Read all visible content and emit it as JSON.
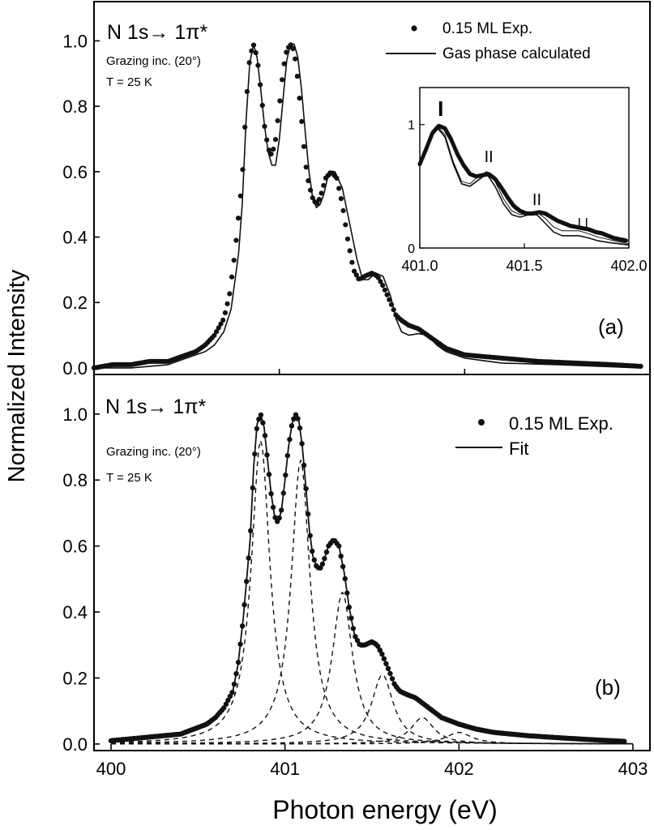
{
  "figure": {
    "shared_ylabel": "Normalized Intensity",
    "shared_xlabel": "Photon energy (eV)"
  },
  "chart_data": [
    {
      "panel": "a",
      "type": "line",
      "panel_label": "(a)",
      "title": "N 1s→ 1π*",
      "annotations": [
        "Grazing inc. (20°)",
        "T = 25 K"
      ],
      "xlim": [
        400,
        403
      ],
      "ylim": [
        -0.02,
        1.12
      ],
      "yticks": [
        0.0,
        0.2,
        0.4,
        0.6,
        0.8,
        1.0
      ],
      "ytick_labels": [
        "0.0",
        "0.2",
        "0.4",
        "0.6",
        "0.8",
        "1.0"
      ],
      "legend": {
        "position": "top-right",
        "entries": [
          "0.15 ML Exp.",
          "Gas phase calculated"
        ]
      },
      "series": [
        {
          "name": "0.15 ML Exp.",
          "style": "dots",
          "x": [
            400.0,
            400.1,
            400.2,
            400.3,
            400.4,
            400.5,
            400.55,
            400.6,
            400.65,
            400.7,
            400.73,
            400.76,
            400.8,
            400.82,
            400.84,
            400.86,
            400.88,
            400.9,
            400.92,
            400.94,
            400.96,
            400.98,
            401.0,
            401.02,
            401.04,
            401.06,
            401.08,
            401.1,
            401.12,
            401.14,
            401.16,
            401.18,
            401.2,
            401.22,
            401.25,
            401.28,
            401.31,
            401.34,
            401.37,
            401.4,
            401.43,
            401.46,
            401.5,
            401.53,
            401.56,
            401.6,
            401.63,
            401.66,
            401.7,
            401.75,
            401.8,
            401.85,
            401.9,
            402.0,
            402.1,
            402.2,
            402.4,
            402.6,
            402.8,
            402.95
          ],
          "y": [
            0.0,
            0.01,
            0.01,
            0.02,
            0.02,
            0.04,
            0.05,
            0.07,
            0.1,
            0.15,
            0.22,
            0.35,
            0.58,
            0.8,
            0.95,
            0.99,
            0.95,
            0.85,
            0.74,
            0.67,
            0.65,
            0.7,
            0.8,
            0.91,
            0.97,
            0.99,
            0.97,
            0.88,
            0.76,
            0.63,
            0.56,
            0.52,
            0.5,
            0.52,
            0.58,
            0.6,
            0.58,
            0.5,
            0.39,
            0.3,
            0.27,
            0.28,
            0.29,
            0.28,
            0.25,
            0.2,
            0.16,
            0.145,
            0.13,
            0.12,
            0.1,
            0.08,
            0.06,
            0.04,
            0.035,
            0.03,
            0.02,
            0.015,
            0.01,
            0.005
          ]
        },
        {
          "name": "Gas phase calculated",
          "style": "solid",
          "x": [
            400.0,
            400.2,
            400.4,
            400.5,
            400.6,
            400.65,
            400.7,
            400.74,
            400.78,
            400.8,
            400.82,
            400.84,
            400.86,
            400.88,
            400.9,
            400.92,
            400.94,
            400.96,
            400.98,
            401.0,
            401.02,
            401.04,
            401.06,
            401.08,
            401.1,
            401.12,
            401.14,
            401.16,
            401.18,
            401.2,
            401.22,
            401.24,
            401.26,
            401.3,
            401.34,
            401.38,
            401.42,
            401.45,
            401.48,
            401.52,
            401.56,
            401.6,
            401.63,
            401.66,
            401.7,
            401.75,
            401.8,
            401.85,
            401.9,
            402.0,
            402.2,
            402.5,
            402.95
          ],
          "y": [
            0.0,
            0.0,
            0.01,
            0.03,
            0.05,
            0.07,
            0.11,
            0.18,
            0.35,
            0.5,
            0.75,
            0.93,
            0.99,
            0.95,
            0.85,
            0.74,
            0.66,
            0.62,
            0.62,
            0.7,
            0.82,
            0.94,
            0.99,
            0.99,
            0.95,
            0.85,
            0.72,
            0.6,
            0.52,
            0.49,
            0.5,
            0.53,
            0.58,
            0.6,
            0.55,
            0.44,
            0.33,
            0.27,
            0.27,
            0.29,
            0.28,
            0.22,
            0.15,
            0.11,
            0.1,
            0.105,
            0.1,
            0.07,
            0.05,
            0.03,
            0.015,
            0.01,
            0.0
          ]
        }
      ]
    },
    {
      "panel": "a-inset",
      "type": "line",
      "xlim": [
        401.0,
        402.0
      ],
      "ylim": [
        0,
        1.3
      ],
      "xticks": [
        401.0,
        401.5,
        402.0
      ],
      "xtick_labels": [
        "401.0",
        "401.5",
        "402.0"
      ],
      "yticks": [
        0,
        1
      ],
      "ytick_labels": [
        "0",
        "1"
      ],
      "peak_markers": [
        {
          "x": 401.1,
          "label": "I"
        },
        {
          "x": 401.33,
          "label": "II"
        },
        {
          "x": 401.56,
          "label": "II"
        },
        {
          "x": 401.78,
          "label": "I I"
        }
      ],
      "series": [
        {
          "name": "0.15 ML Exp.",
          "style": "dots",
          "x": [
            401.0,
            401.03,
            401.06,
            401.09,
            401.12,
            401.15,
            401.18,
            401.21,
            401.24,
            401.27,
            401.3,
            401.33,
            401.36,
            401.39,
            401.42,
            401.45,
            401.48,
            401.51,
            401.54,
            401.57,
            401.6,
            401.63,
            401.66,
            401.69,
            401.72,
            401.75,
            401.78,
            401.81,
            401.84,
            401.87,
            401.9,
            401.93,
            401.96,
            401.99
          ],
          "y": [
            0.68,
            0.8,
            0.93,
            0.99,
            0.97,
            0.88,
            0.76,
            0.67,
            0.6,
            0.58,
            0.59,
            0.6,
            0.56,
            0.49,
            0.41,
            0.34,
            0.3,
            0.28,
            0.28,
            0.29,
            0.28,
            0.25,
            0.22,
            0.2,
            0.18,
            0.17,
            0.16,
            0.15,
            0.13,
            0.12,
            0.1,
            0.08,
            0.07,
            0.06
          ]
        },
        {
          "name": "Gas phase calculated",
          "style": "solid",
          "x": [
            401.0,
            401.04,
            401.08,
            401.12,
            401.16,
            401.2,
            401.24,
            401.28,
            401.32,
            401.36,
            401.4,
            401.44,
            401.48,
            401.52,
            401.56,
            401.6,
            401.64,
            401.68,
            401.72,
            401.76,
            401.8,
            401.85,
            401.9,
            401.95,
            402.0
          ],
          "y": [
            0.7,
            0.85,
            0.98,
            0.9,
            0.68,
            0.52,
            0.5,
            0.55,
            0.6,
            0.5,
            0.36,
            0.27,
            0.25,
            0.27,
            0.27,
            0.2,
            0.13,
            0.1,
            0.1,
            0.1,
            0.085,
            0.06,
            0.045,
            0.035,
            0.025
          ]
        },
        {
          "name": "Gas phase (thin)",
          "style": "thin",
          "x": [
            401.0,
            401.04,
            401.08,
            401.12,
            401.16,
            401.2,
            401.24,
            401.28,
            401.32,
            401.36,
            401.4,
            401.44,
            401.48,
            401.52,
            401.56,
            401.6,
            401.64,
            401.68,
            401.72,
            401.76,
            401.8,
            401.85,
            401.9,
            401.95,
            402.0
          ],
          "y": [
            0.7,
            0.86,
            0.99,
            0.92,
            0.7,
            0.54,
            0.52,
            0.58,
            0.62,
            0.54,
            0.4,
            0.3,
            0.27,
            0.28,
            0.29,
            0.24,
            0.17,
            0.14,
            0.14,
            0.14,
            0.12,
            0.09,
            0.07,
            0.05,
            0.035
          ]
        }
      ]
    },
    {
      "panel": "b",
      "type": "line",
      "panel_label": "(b)",
      "title": "N 1s→ 1π*",
      "annotations": [
        "Grazing inc. (20°)",
        "T = 25 K"
      ],
      "xlim": [
        400,
        403
      ],
      "ylim": [
        -0.02,
        1.12
      ],
      "xticks": [
        400,
        401,
        402,
        403
      ],
      "xtick_labels": [
        "400",
        "401",
        "402",
        "403"
      ],
      "yticks": [
        0.0,
        0.2,
        0.4,
        0.6,
        0.8,
        1.0
      ],
      "ytick_labels": [
        "0.0",
        "0.2",
        "0.4",
        "0.6",
        "0.8",
        "1.0"
      ],
      "legend": {
        "position": "top-right",
        "entries": [
          "0.15 ML Exp.",
          "Fit"
        ]
      },
      "series": [
        {
          "name": "0.15 ML Exp.",
          "style": "dots",
          "x": [
            400.0,
            400.1,
            400.2,
            400.3,
            400.4,
            400.5,
            400.55,
            400.6,
            400.65,
            400.7,
            400.73,
            400.76,
            400.8,
            400.82,
            400.84,
            400.86,
            400.88,
            400.9,
            400.92,
            400.94,
            400.96,
            400.98,
            401.0,
            401.02,
            401.04,
            401.06,
            401.08,
            401.1,
            401.12,
            401.14,
            401.16,
            401.18,
            401.2,
            401.22,
            401.25,
            401.28,
            401.31,
            401.34,
            401.37,
            401.4,
            401.43,
            401.46,
            401.5,
            401.53,
            401.56,
            401.6,
            401.63,
            401.66,
            401.7,
            401.75,
            401.8,
            401.85,
            401.9,
            402.0,
            402.1,
            402.2,
            402.4,
            402.6,
            402.8,
            402.95
          ],
          "y": [
            0.01,
            0.015,
            0.02,
            0.025,
            0.03,
            0.05,
            0.06,
            0.08,
            0.11,
            0.16,
            0.24,
            0.38,
            0.62,
            0.84,
            0.97,
            1.0,
            0.96,
            0.86,
            0.76,
            0.69,
            0.67,
            0.71,
            0.8,
            0.9,
            0.97,
            1.0,
            0.98,
            0.9,
            0.78,
            0.65,
            0.57,
            0.54,
            0.53,
            0.55,
            0.6,
            0.62,
            0.6,
            0.52,
            0.41,
            0.33,
            0.3,
            0.3,
            0.31,
            0.3,
            0.27,
            0.22,
            0.18,
            0.16,
            0.15,
            0.14,
            0.12,
            0.1,
            0.08,
            0.06,
            0.045,
            0.035,
            0.025,
            0.018,
            0.012,
            0.008
          ]
        },
        {
          "name": "Fit",
          "style": "solid",
          "x": [
            400.0,
            400.1,
            400.2,
            400.3,
            400.4,
            400.5,
            400.55,
            400.6,
            400.65,
            400.7,
            400.73,
            400.76,
            400.8,
            400.82,
            400.84,
            400.86,
            400.88,
            400.9,
            400.92,
            400.94,
            400.96,
            400.98,
            401.0,
            401.02,
            401.04,
            401.06,
            401.08,
            401.1,
            401.12,
            401.14,
            401.16,
            401.18,
            401.2,
            401.22,
            401.25,
            401.28,
            401.31,
            401.34,
            401.37,
            401.4,
            401.43,
            401.46,
            401.5,
            401.53,
            401.56,
            401.6,
            401.63,
            401.66,
            401.7,
            401.75,
            401.8,
            401.85,
            401.9,
            402.0,
            402.1,
            402.2,
            402.4,
            402.6,
            402.8,
            402.95
          ],
          "y": [
            0.01,
            0.015,
            0.02,
            0.025,
            0.03,
            0.05,
            0.06,
            0.08,
            0.11,
            0.16,
            0.24,
            0.38,
            0.62,
            0.84,
            0.97,
            1.0,
            0.96,
            0.86,
            0.76,
            0.69,
            0.67,
            0.71,
            0.8,
            0.9,
            0.97,
            1.0,
            0.98,
            0.9,
            0.78,
            0.65,
            0.57,
            0.54,
            0.53,
            0.55,
            0.6,
            0.62,
            0.6,
            0.52,
            0.41,
            0.33,
            0.3,
            0.3,
            0.31,
            0.3,
            0.27,
            0.22,
            0.18,
            0.16,
            0.15,
            0.14,
            0.12,
            0.1,
            0.08,
            0.06,
            0.045,
            0.035,
            0.025,
            0.018,
            0.012,
            0.008
          ]
        }
      ],
      "fit_components": [
        {
          "center": 400.86,
          "amplitude": 0.92,
          "width": 0.065
        },
        {
          "center": 401.09,
          "amplitude": 0.86,
          "width": 0.065
        },
        {
          "center": 401.33,
          "amplitude": 0.46,
          "width": 0.07
        },
        {
          "center": 401.56,
          "amplitude": 0.21,
          "width": 0.075
        },
        {
          "center": 401.79,
          "amplitude": 0.08,
          "width": 0.08
        },
        {
          "center": 402.0,
          "amplitude": 0.035,
          "width": 0.09
        }
      ]
    }
  ]
}
